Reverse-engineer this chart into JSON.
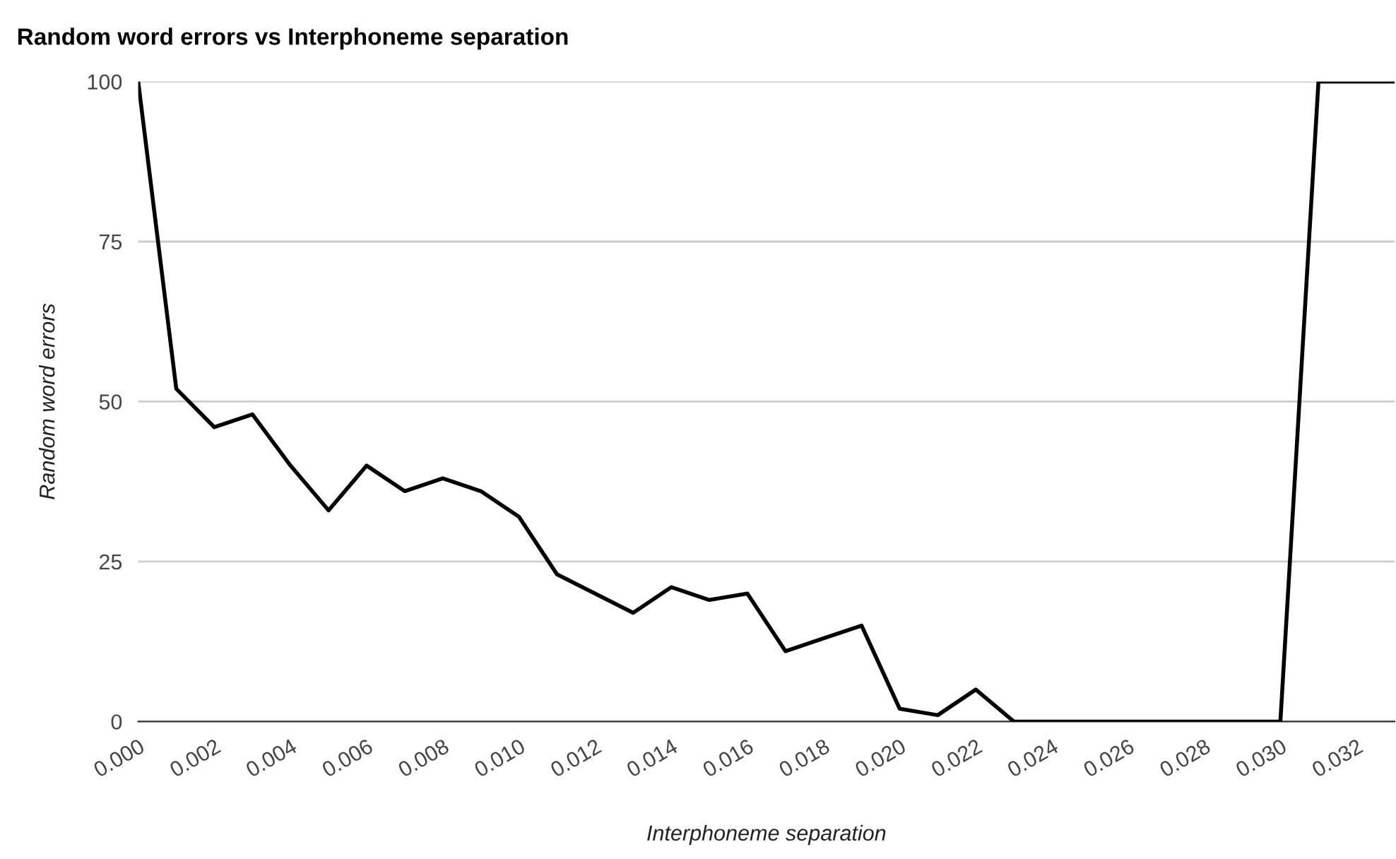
{
  "chart_data": {
    "type": "line",
    "title": "Random word errors vs Interphoneme separation",
    "xlabel": "Interphoneme separation",
    "ylabel": "Random word errors",
    "x": [
      0.0,
      0.001,
      0.002,
      0.003,
      0.004,
      0.005,
      0.006,
      0.007,
      0.008,
      0.009,
      0.01,
      0.011,
      0.012,
      0.013,
      0.014,
      0.015,
      0.016,
      0.017,
      0.018,
      0.019,
      0.02,
      0.021,
      0.022,
      0.023,
      0.024,
      0.025,
      0.026,
      0.027,
      0.028,
      0.029,
      0.03,
      0.031,
      0.032,
      0.033
    ],
    "series": [
      {
        "color": "#000000",
        "values": [
          100,
          52,
          46,
          48,
          40,
          33,
          40,
          36,
          38,
          36,
          32,
          23,
          20,
          17,
          21,
          19,
          20,
          11,
          13,
          15,
          2,
          1,
          5,
          0,
          0,
          0,
          0,
          0,
          0,
          0,
          0,
          100,
          100,
          100
        ]
      }
    ],
    "xlim": [
      0,
      0.033
    ],
    "ylim": [
      0,
      100
    ],
    "xticks": [
      {
        "value": 0.0,
        "label": "0.000"
      },
      {
        "value": 0.002,
        "label": "0.002"
      },
      {
        "value": 0.004,
        "label": "0.004"
      },
      {
        "value": 0.006,
        "label": "0.006"
      },
      {
        "value": 0.008,
        "label": "0.008"
      },
      {
        "value": 0.01,
        "label": "0.010"
      },
      {
        "value": 0.012,
        "label": "0.012"
      },
      {
        "value": 0.014,
        "label": "0.014"
      },
      {
        "value": 0.016,
        "label": "0.016"
      },
      {
        "value": 0.018,
        "label": "0.018"
      },
      {
        "value": 0.02,
        "label": "0.020"
      },
      {
        "value": 0.022,
        "label": "0.022"
      },
      {
        "value": 0.024,
        "label": "0.024"
      },
      {
        "value": 0.026,
        "label": "0.026"
      },
      {
        "value": 0.028,
        "label": "0.028"
      },
      {
        "value": 0.03,
        "label": "0.030"
      },
      {
        "value": 0.032,
        "label": "0.032"
      }
    ],
    "yticks": [
      0,
      25,
      50,
      75,
      100
    ],
    "grid": "y",
    "marker": "none",
    "line_style": "solid"
  }
}
